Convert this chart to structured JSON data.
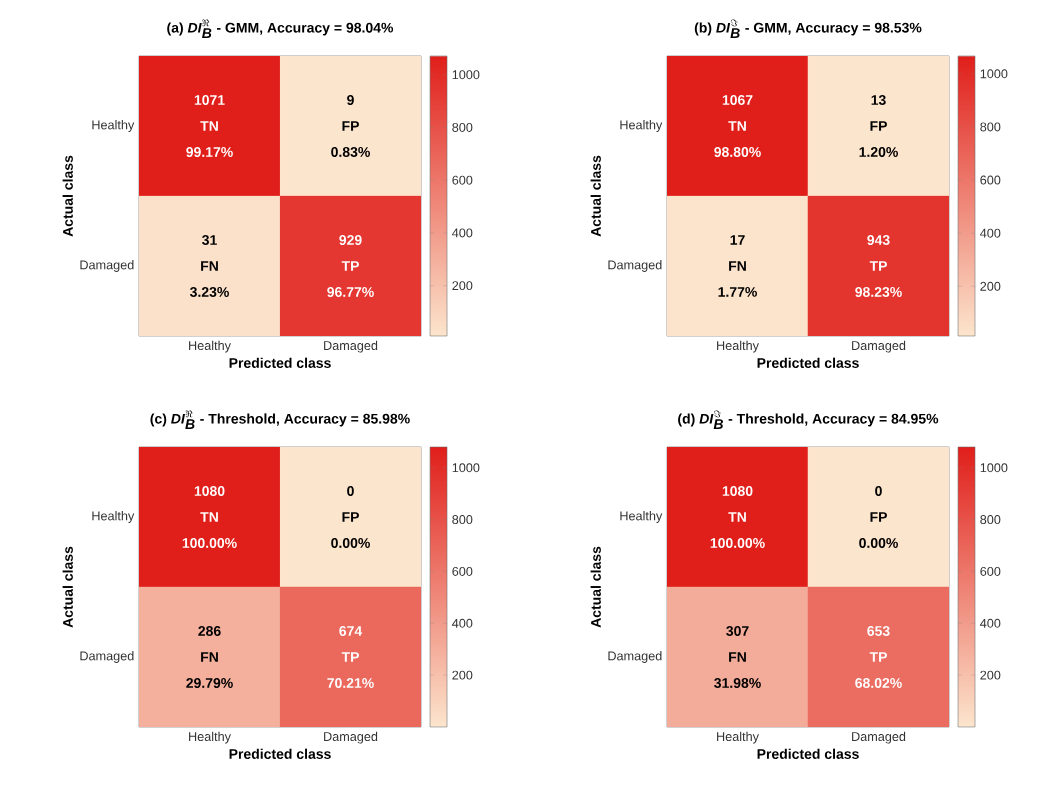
{
  "chart_data": [
    {
      "type": "heatmap",
      "title": "\\textbf{(a) }\\textbf{\\textit{DI}}_{\\textbf{\\textit{B}}}^{\\Re}\\textbf{ - GMM, Accuracy = 98.04\\%}",
      "xlabel": "Predicted class",
      "ylabel": "Actual class",
      "categories": [
        "Healthy",
        "Damaged"
      ],
      "y_categories": [
        "Healthy",
        "Damaged"
      ],
      "cells": [
        [
          1071,
          9
        ],
        [
          31,
          929
        ]
      ],
      "cell_labels": [
        [
          [
            "1071",
            "TN",
            "99.17%"
          ],
          [
            "9",
            "FP",
            "0.83%"
          ]
        ],
        [
          [
            "31",
            "FN",
            "3.23%"
          ],
          [
            "929",
            "TP",
            "96.77%"
          ]
        ]
      ],
      "clim": [
        9,
        1071
      ],
      "cticks": [
        200,
        400,
        600,
        800,
        1000
      ]
    },
    {
      "type": "heatmap",
      "title": "\\textbf{(b) }\\textbf{\\textit{DI}}_{\\textbf{\\textit{B}}}^{\\Im}\\textbf{ - GMM, Accuracy = 98.53\\%}",
      "xlabel": "Predicted class",
      "ylabel": "Actual class",
      "categories": [
        "Healthy",
        "Damaged"
      ],
      "y_categories": [
        "Healthy",
        "Damaged"
      ],
      "cells": [
        [
          1067,
          13
        ],
        [
          17,
          943
        ]
      ],
      "cell_labels": [
        [
          [
            "1067",
            "TN",
            "98.80%"
          ],
          [
            "13",
            "FP",
            "1.20%"
          ]
        ],
        [
          [
            "17",
            "FN",
            "1.77%"
          ],
          [
            "943",
            "TP",
            "98.23%"
          ]
        ]
      ],
      "clim": [
        13,
        1067
      ],
      "cticks": [
        200,
        400,
        600,
        800,
        1000
      ]
    },
    {
      "type": "heatmap",
      "title": "\\textbf{(c) }\\textbf{\\textit{DI}}_{\\textbf{\\textit{B}}}^{\\Re}\\textbf{ - Threshold, Accuracy = 85.98\\%}",
      "xlabel": "Predicted class",
      "ylabel": "Actual class",
      "categories": [
        "Healthy",
        "Damaged"
      ],
      "y_categories": [
        "Healthy",
        "Damaged"
      ],
      "cells": [
        [
          1080,
          0
        ],
        [
          286,
          674
        ]
      ],
      "cell_labels": [
        [
          [
            "1080",
            "TN",
            "100.00%"
          ],
          [
            "0",
            "FP",
            "0.00%"
          ]
        ],
        [
          [
            "286",
            "FN",
            "29.79%"
          ],
          [
            "674",
            "TP",
            "70.21%"
          ]
        ]
      ],
      "clim": [
        0,
        1080
      ],
      "cticks": [
        200,
        400,
        600,
        800,
        1000
      ]
    },
    {
      "type": "heatmap",
      "title": "\\textbf{(d) }\\textbf{\\textit{DI}}_{\\textbf{\\textit{B}}}^{\\Im}\\textbf{ - Threshold, Accuracy = 84.95\\%}",
      "xlabel": "Predicted class",
      "ylabel": "Actual class",
      "categories": [
        "Healthy",
        "Damaged"
      ],
      "y_categories": [
        "Healthy",
        "Damaged"
      ],
      "cells": [
        [
          1080,
          0
        ],
        [
          307,
          653
        ]
      ],
      "cell_labels": [
        [
          [
            "1080",
            "TN",
            "100.00%"
          ],
          [
            "0",
            "FP",
            "0.00%"
          ]
        ],
        [
          [
            "307",
            "FN",
            "31.98%"
          ],
          [
            "653",
            "TP",
            "68.02%"
          ]
        ]
      ],
      "clim": [
        0,
        1080
      ],
      "cticks": [
        200,
        400,
        600,
        800,
        1000
      ]
    }
  ]
}
